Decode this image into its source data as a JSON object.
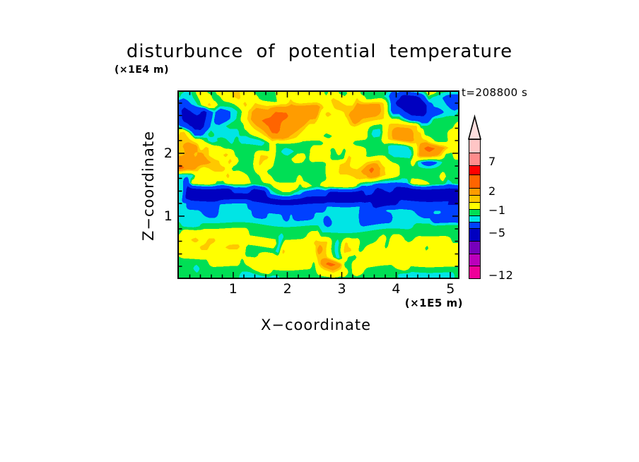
{
  "title": "disturbunce of potential temperature",
  "timestamp": "t=208800 s",
  "axes": {
    "x": {
      "label": "X−coordinate",
      "unit": "(×1E5 m)",
      "max": 5.14,
      "minor_step": 0.2,
      "ticks": [
        {
          "v": 1,
          "label": "1"
        },
        {
          "v": 2,
          "label": "2"
        },
        {
          "v": 3,
          "label": "3"
        },
        {
          "v": 4,
          "label": "4"
        },
        {
          "v": 5,
          "label": "5"
        }
      ]
    },
    "y": {
      "label": "Z−coordinate",
      "unit": "(×1E4 m)",
      "max": 2.95,
      "minor_step": 0.2,
      "ticks": [
        {
          "v": 1,
          "label": "1"
        },
        {
          "v": 2,
          "label": "2"
        }
      ]
    }
  },
  "colorbar": {
    "tip_color": "#FFDEDE",
    "segments": [
      {
        "color": "#FFC6C6",
        "height": 18
      },
      {
        "color": "#FF8C8C",
        "height": 18
      },
      {
        "color": "#FF0000",
        "height": 13
      },
      {
        "color": "#FF6400",
        "height": 19
      },
      {
        "color": "#FF9C00",
        "height": 10
      },
      {
        "color": "#FFC800",
        "height": 10
      },
      {
        "color": "#FFFF00",
        "height": 10
      },
      {
        "color": "#00DF55",
        "height": 9
      },
      {
        "color": "#00E5E5",
        "height": 9
      },
      {
        "color": "#0040FF",
        "height": 9
      },
      {
        "color": "#0000C0",
        "height": 18
      },
      {
        "color": "#7700BB",
        "height": 18
      },
      {
        "color": "#BB00BB",
        "height": 17
      },
      {
        "color": "#EE0099",
        "height": 18
      }
    ],
    "labels": [
      {
        "text": "7",
        "y": 229
      },
      {
        "text": "2",
        "y": 271
      },
      {
        "text": "−1",
        "y": 298
      },
      {
        "text": "−5",
        "y": 330
      },
      {
        "text": "−12",
        "y": 390
      }
    ]
  },
  "chart_data": {
    "type": "heatmap",
    "subtype": "filled_contour",
    "title": "disturbunce of potential temperature",
    "xlabel": "X−coordinate (×1E5 m)",
    "ylabel": "Z−coordinate (×1E4 m)",
    "time_annotation": "t=208800 s",
    "x_range": [
      0,
      5.14
    ],
    "y_range": [
      0,
      2.95
    ],
    "labeled_levels": [
      7,
      2,
      -1,
      -5,
      -12
    ],
    "palette": {
      "thresholds": [
        -5,
        -2,
        -1,
        0,
        2,
        3,
        5
      ],
      "colors": [
        "#0000C0",
        "#0040FF",
        "#00E5E5",
        "#00DF55",
        "#FFFF00",
        "#FFC800",
        "#FF9C00",
        "#FF6400"
      ]
    },
    "field": {
      "comment": "coarse 40x27 sample of the disturbance field, row 0 = top of plot",
      "char_values": {
        "N": -6.5,
        "B": -3.5,
        "C": -1.6,
        "G": -0.5,
        "Y": 1.0,
        "D": 2.5,
        "O": 4.0,
        "R": 6.0
      },
      "rows": [
        "GGCYGGYYDYYGGGYYYYYYYGYGYYGGGGCGGGGYYGGG",
        "GCCYYGGYDYYYGGYYDYYYYYDYYDYGGCBBNNBGCCBB",
        "BBCYDYGGYDYDDOOOOOOODYDDDOOODGBNNNNBCCBB",
        "BNBNBCBCGYDOORRROOOOYDYDOOOODGBBNNNBBCCG",
        "CNNNBCBCGYDORRROOODDYYYYDODDDYGGBBBBGGGG",
        "GBNNBCCGGGYDORROODYYYYYYYYYGGYDDDDGGGGGY",
        "YDBBCGCCCGGYDOOODYYYYGYYYYYCCYDOODDGGGYY",
        "DDYYGCGCGCCCGYGGGGGGGYYYYGGGGYDOODDDGGYY",
        "DOOYDYGGGGGGGYGCGGGYYGYGYYGGGGCCGYORODYY",
        "DODODYDYGGGDDYGGYYGYYGGGDYGGGGCCCYOODGGY",
        "OOOOODYDYGGDYYGGGGGGGYYDDYDDDYGGGYCBCGGG",
        "ROODYDDYGGGYYGGGGGGGGYYDDDORODYGGGGGGGGG",
        "CCCYYYYDYYGGYYGGGYGGGYYYYDDOODYGGGGGGYGG",
        "CBYYYGGYYYGGGGYYYGYGYYYYYCCCCCCCCYYGGGCG",
        "CNNNNNNNBBNNNCGGCCBBBNNNNNBBNBNNNNNNNNNN",
        "CNNNNNNNNNNNNNNNNNNNNNNNNNNNNNNNNNNNNNN",
        "CCBBBBCCCCBBBBBBBBBBBCCCCCBBNNNBBBBBBBBB",
        "CCCCBBCCCCCBBCCBCBBCCCCCCCBBBCCCCCBBCCBB",
        "CCCCCCCCCCCCCCCCCCCCCBCCCCBBBBCCCCCCBBBB",
        "GCCGGGGGGGGGGGGGGGGGCCCCCCCCCCCCCGGGGGGG",
        "GYYYYYYYYYGGGGCGGGYYGGGGGGGGGGGGGGGGGGGG",
        "YYDYDDYYYYYYYYCYYYYDDDCDYYGGYGYYGYYYYYGG",
        "GYYDDYYDDYGGGGCDYYYYODCDDYGYYGYYYYYGYYYY",
        "GYYYYYYYYYGGYYYYYYYYDDCYGGYYYYYYYYYYYYYY",
        "GGGGGYYYYGYYYYYYYYYGDROGGYYYYYYYYYYYYYYY",
        "GGCGGGGGGGGYYGGGGGGGYDYYGYGGGGGYGGGGGGGG",
        "GGGGGGGGGCCCCCCGGGGGGGGGGGGGGGGCCCCCCCCG"
      ]
    }
  }
}
